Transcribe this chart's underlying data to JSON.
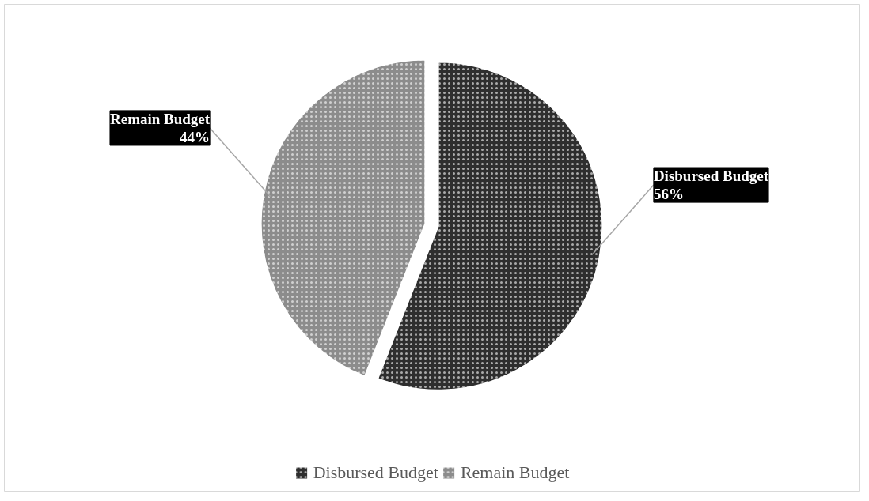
{
  "chart_data": {
    "type": "pie",
    "categories": [
      "Disbursed Budget",
      "Remain Budget"
    ],
    "values": [
      56,
      44
    ],
    "colors": [
      "#2e2e2e",
      "#8c8c8c"
    ],
    "value_labels": [
      "56%",
      "44%"
    ],
    "legend": "bottom"
  }
}
